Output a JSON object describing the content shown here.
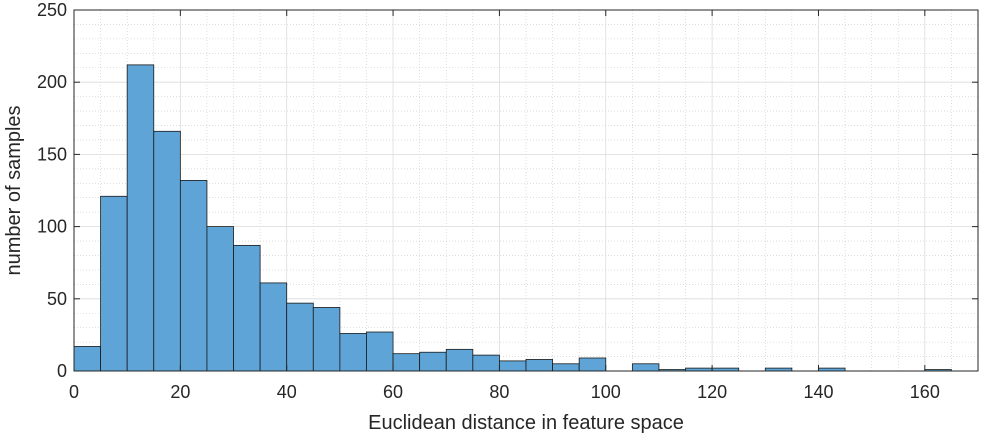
{
  "chart_data": {
    "type": "bar",
    "title": "",
    "xlabel": "Euclidean distance in feature space",
    "ylabel": "number of samples",
    "xlim": [
      0,
      170
    ],
    "ylim": [
      0,
      250
    ],
    "bin_width": 5,
    "bin_edges_start": 0,
    "values": [
      17,
      121,
      212,
      166,
      132,
      100,
      87,
      61,
      47,
      44,
      26,
      27,
      12,
      13,
      15,
      11,
      7,
      8,
      5,
      9,
      0,
      5,
      1,
      2,
      2,
      0,
      2,
      0,
      2,
      0,
      0,
      0,
      1
    ],
    "x_ticks": [
      "0",
      "20",
      "40",
      "60",
      "80",
      "100",
      "120",
      "140",
      "160"
    ],
    "y_ticks": [
      "0",
      "50",
      "100",
      "150",
      "200",
      "250"
    ],
    "grid": true,
    "minor_grid": true,
    "bar_color": "#5fa4d6",
    "edge_color": "#1a1a1a"
  }
}
